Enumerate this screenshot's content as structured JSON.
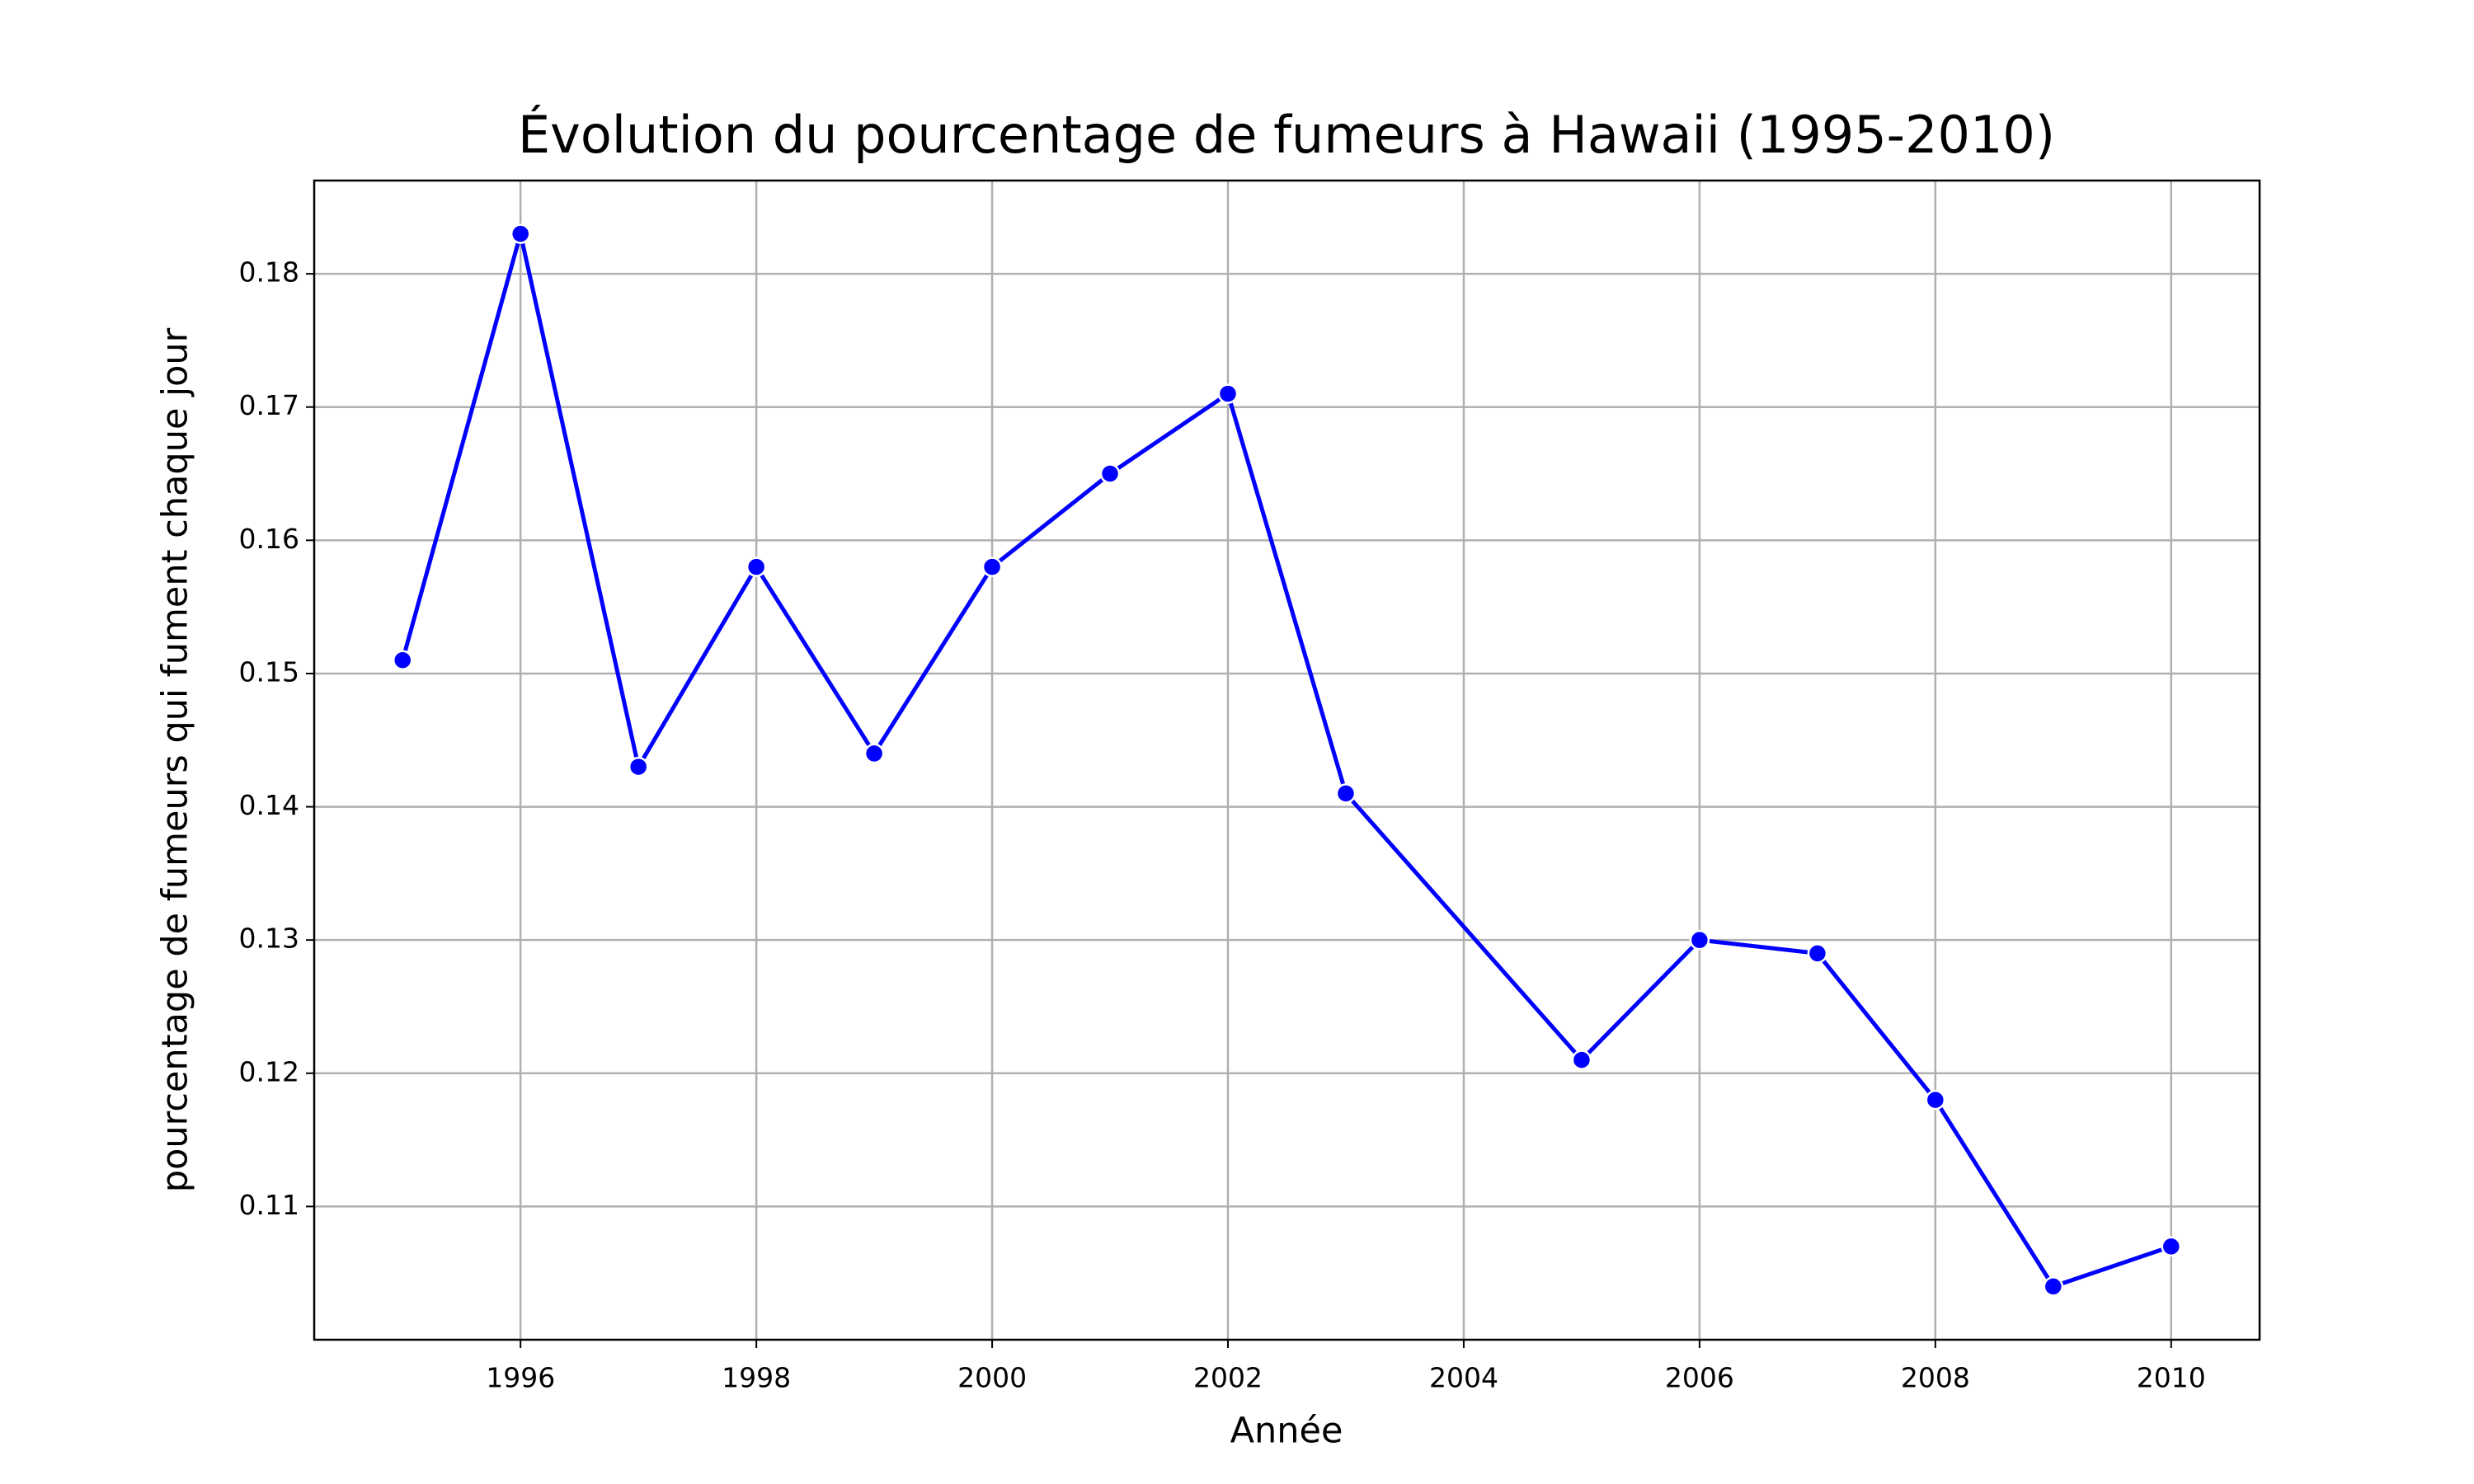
{
  "chart_data": {
    "type": "line",
    "title": "Évolution du pourcentage de fumeurs à Hawaii (1995-2010)",
    "x_label": "Année",
    "y_label": "pourcentage de fumeurs qui fument chaque jour",
    "x": [
      1995,
      1996,
      1997,
      1998,
      1999,
      2000,
      2001,
      2002,
      2003,
      2005,
      2006,
      2007,
      2008,
      2009,
      2010
    ],
    "values": [
      0.151,
      0.183,
      0.143,
      0.158,
      0.144,
      0.158,
      0.165,
      0.171,
      0.141,
      0.121,
      0.13,
      0.129,
      0.118,
      0.104,
      0.107
    ],
    "color": "#0000ff",
    "xlim": [
      1994.25,
      2010.75
    ],
    "ylim": [
      0.1,
      0.187
    ],
    "xticks": [
      1996,
      1998,
      2000,
      2002,
      2004,
      2006,
      2008,
      2010
    ],
    "yticks": [
      0.11,
      0.12,
      0.13,
      0.14,
      0.15,
      0.16,
      0.17,
      0.18
    ],
    "grid": true
  }
}
